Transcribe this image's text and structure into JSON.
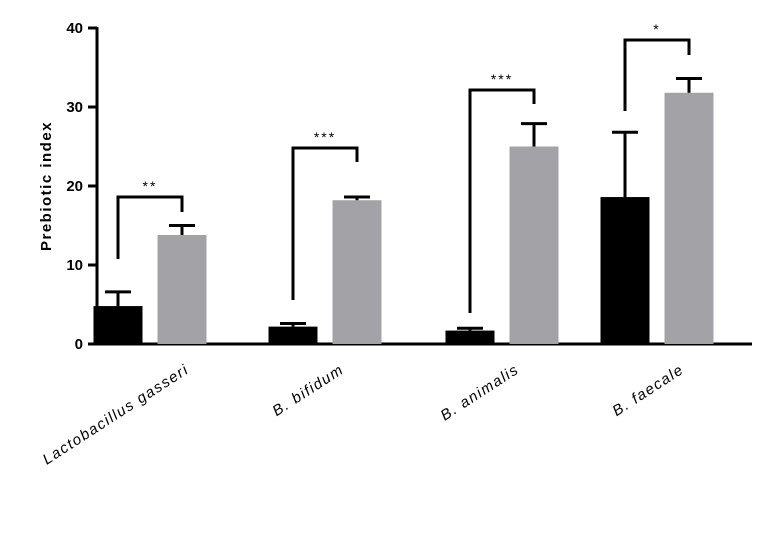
{
  "chart_data": {
    "type": "bar",
    "categories": [
      "Lactobacillus gasseri",
      "B. bifidum",
      "B. animalis",
      "B. faecale"
    ],
    "series": [
      {
        "color": "#000000",
        "values": [
          4.8,
          2.2,
          1.7,
          18.6
        ],
        "errors": [
          1.8,
          0.4,
          0.3,
          8.2
        ]
      },
      {
        "color": "#a3a3a7",
        "values": [
          13.8,
          18.2,
          25.0,
          31.8
        ],
        "errors": [
          1.2,
          0.4,
          2.9,
          1.8
        ]
      }
    ],
    "significance": [
      "**",
      "***",
      "***",
      "*"
    ],
    "ylabel": "Prebiotic index",
    "ylim": [
      0,
      40
    ],
    "yticks": [
      "0",
      "10",
      "20",
      "30",
      "40"
    ],
    "grid": false
  }
}
